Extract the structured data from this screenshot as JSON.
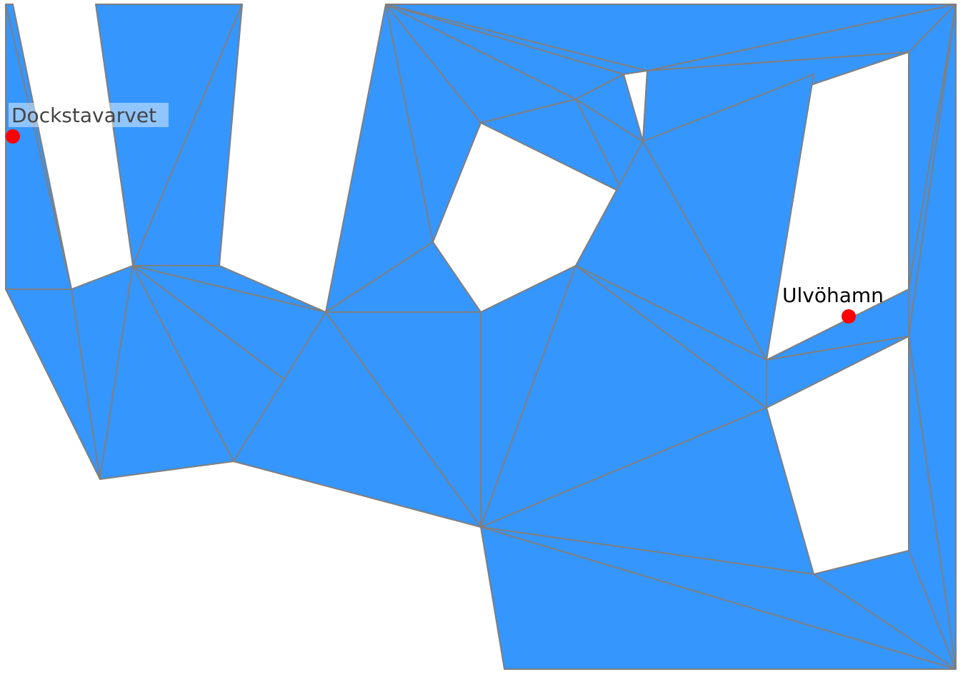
{
  "map": {
    "fill_color": "#3596fd",
    "edge_color": "#7f7f7f",
    "background": "#ffffff",
    "places": [
      {
        "name": "Dockstavarvet",
        "marker_color": "#ff0000"
      },
      {
        "name": "Ulvöhamn",
        "marker_color": "#ff0000"
      }
    ]
  }
}
